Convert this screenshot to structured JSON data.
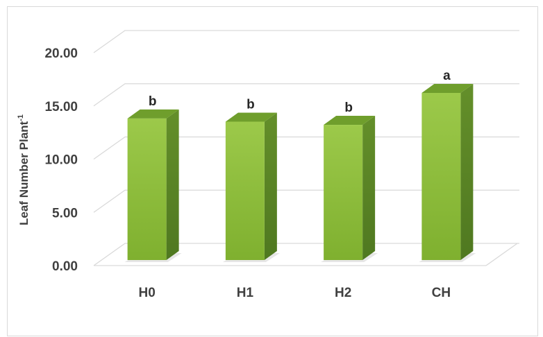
{
  "chart_data": {
    "type": "bar",
    "style": "3d-column",
    "categories": [
      "H0",
      "H1",
      "H2",
      "CH"
    ],
    "values": [
      13.3,
      13.0,
      12.7,
      15.7
    ],
    "significance_labels": [
      "b",
      "b",
      "b",
      "a"
    ],
    "ylabel": "Leaf Number Plant",
    "ylabel_superscript": "-1",
    "ylim": [
      0,
      20
    ],
    "yticks": [
      "0.00",
      "5.00",
      "10.00",
      "15.00",
      "20.00"
    ],
    "grid": true,
    "legend": "none",
    "colors": {
      "bar_front": "#8bbf3a",
      "bar_side": "#5d8a25",
      "bar_top": "#6f9e2c",
      "gridline": "#d9d9d9",
      "text": "#404040"
    }
  }
}
